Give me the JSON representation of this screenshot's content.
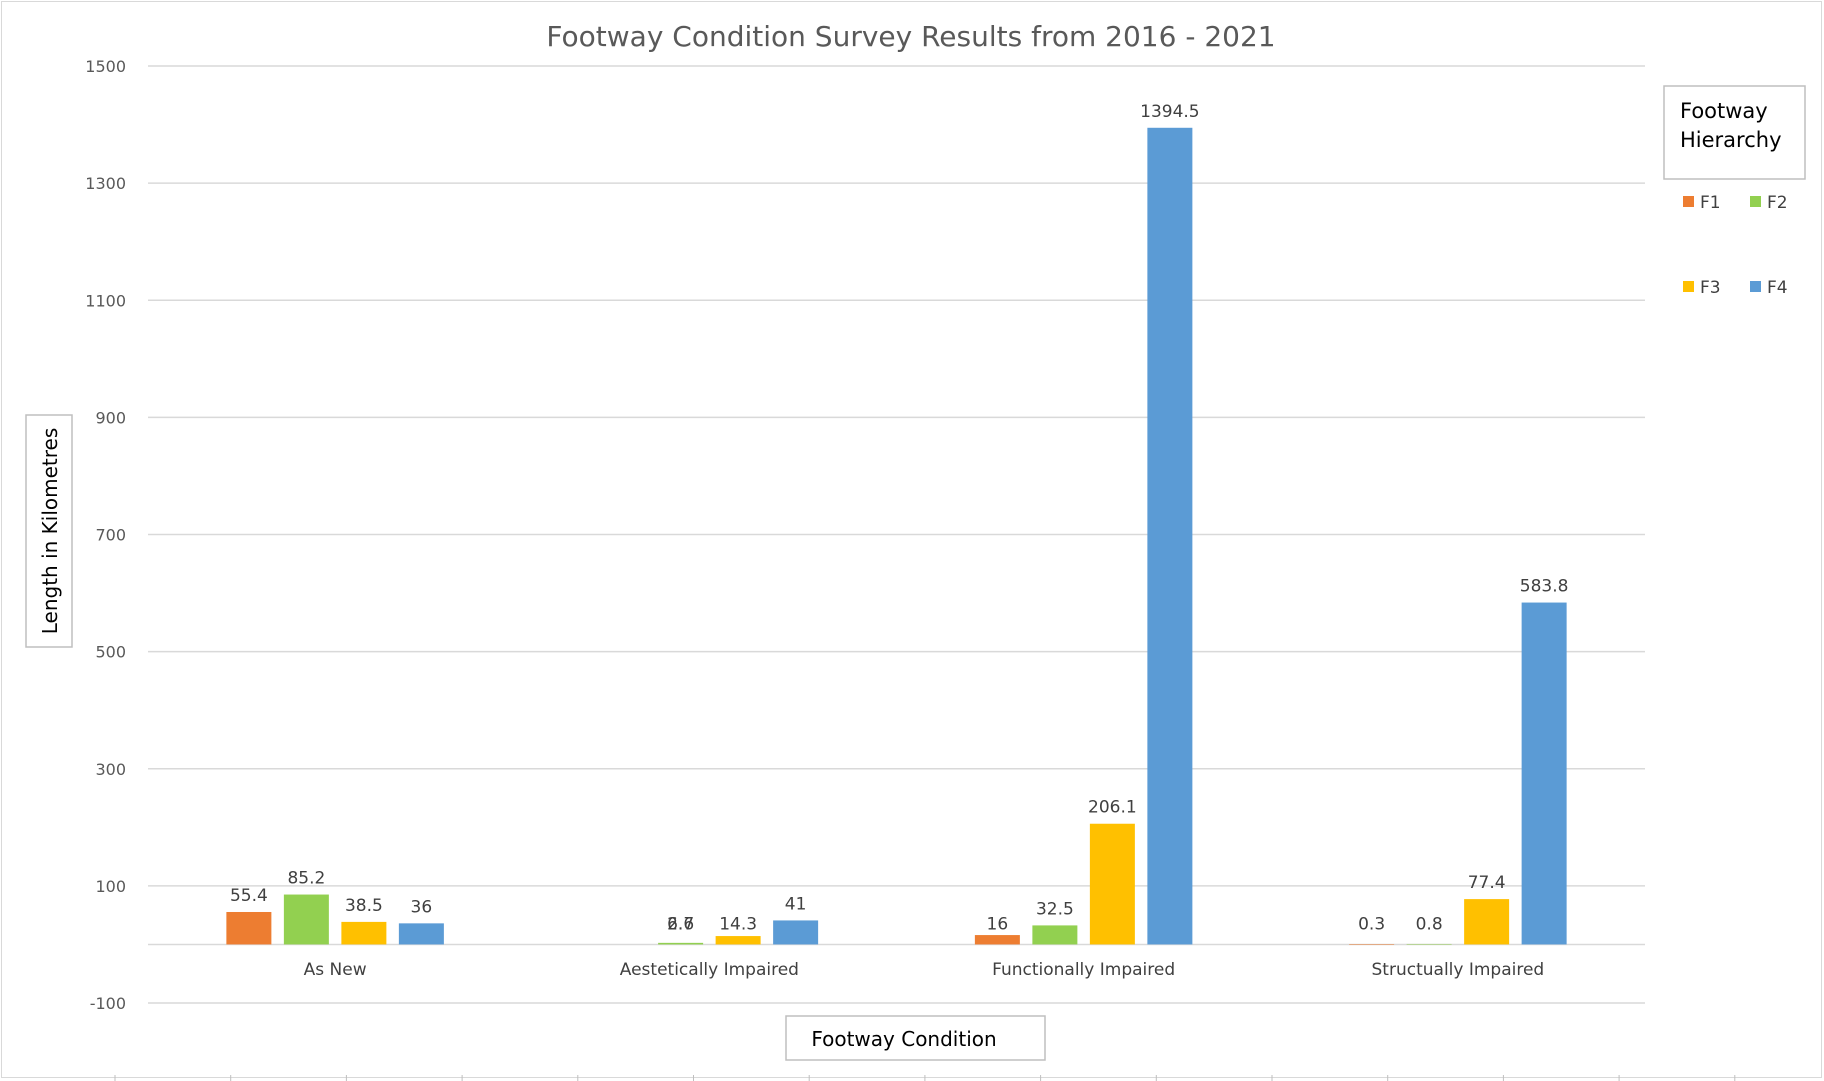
{
  "chart_data": {
    "type": "bar",
    "title": "Footway Condition Survey Results from 2016 - 2021",
    "xlabel": "Footway Condition",
    "ylabel": "Length in Kilometres",
    "categories": [
      "As New",
      "Aestetically Impaired",
      "Functionally Impaired",
      "Structually Impaired"
    ],
    "series": [
      {
        "name": "F1",
        "color": "#ED7D31",
        "values": [
          55.4,
          null,
          16,
          0.3
        ],
        "labels": [
          "55.4",
          "",
          "16",
          "0.3"
        ]
      },
      {
        "name": "F2",
        "color": "#92D050",
        "values": [
          85.2,
          2.7,
          32.5,
          0.8
        ],
        "labels": [
          "85.2",
          "2.7",
          "32.5",
          "0.8"
        ]
      },
      {
        "name": "F3",
        "color": "#FFC000",
        "values": [
          38.5,
          14.3,
          206.1,
          77.4
        ],
        "labels": [
          "38.5",
          "14.3",
          "206.1",
          "77.4"
        ]
      },
      {
        "name": "F4",
        "color": "#5B9BD5",
        "values": [
          36,
          41,
          1394.5,
          583.8
        ],
        "labels": [
          "36",
          "41",
          "1394.5",
          "583.8"
        ]
      }
    ],
    "extra_label": {
      "text": "6.6",
      "category_index": 1
    },
    "ylim": [
      -100,
      1500
    ],
    "yticks": [
      -100,
      100,
      300,
      500,
      700,
      900,
      1100,
      1300,
      1500
    ],
    "grid": true,
    "legend": {
      "title_lines": [
        "Footway",
        "Hierarchy"
      ],
      "placement": "right"
    }
  }
}
